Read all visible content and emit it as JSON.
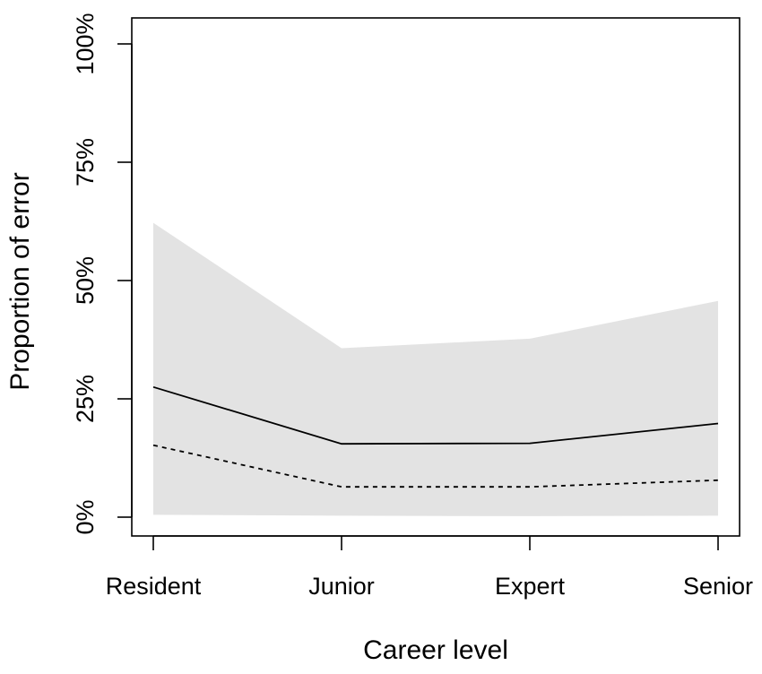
{
  "chart_data": {
    "type": "line",
    "title": "",
    "xlabel": "Career level",
    "ylabel": "Proportion of error",
    "categories": [
      "Resident",
      "Junior",
      "Expert",
      "Senior"
    ],
    "y_ticks": [
      0,
      25,
      50,
      75,
      100
    ],
    "y_tick_labels": [
      "0%",
      "25%",
      "50%",
      "75%",
      "100%"
    ],
    "ylim": [
      0,
      100
    ],
    "grid": false,
    "series": [
      {
        "style": "solid",
        "values": [
          27.5,
          15.5,
          15.6,
          19.8
        ]
      },
      {
        "style": "dashed",
        "values": [
          15.2,
          6.4,
          6.4,
          7.8
        ]
      }
    ],
    "band": {
      "lower": [
        0.5,
        0.3,
        0.2,
        0.3
      ],
      "upper": [
        62.2,
        35.7,
        37.7,
        45.7
      ],
      "color": "#e3e3e3"
    },
    "colors": {
      "line": "#000000",
      "axis": "#000000",
      "band": "#e3e3e3"
    }
  }
}
